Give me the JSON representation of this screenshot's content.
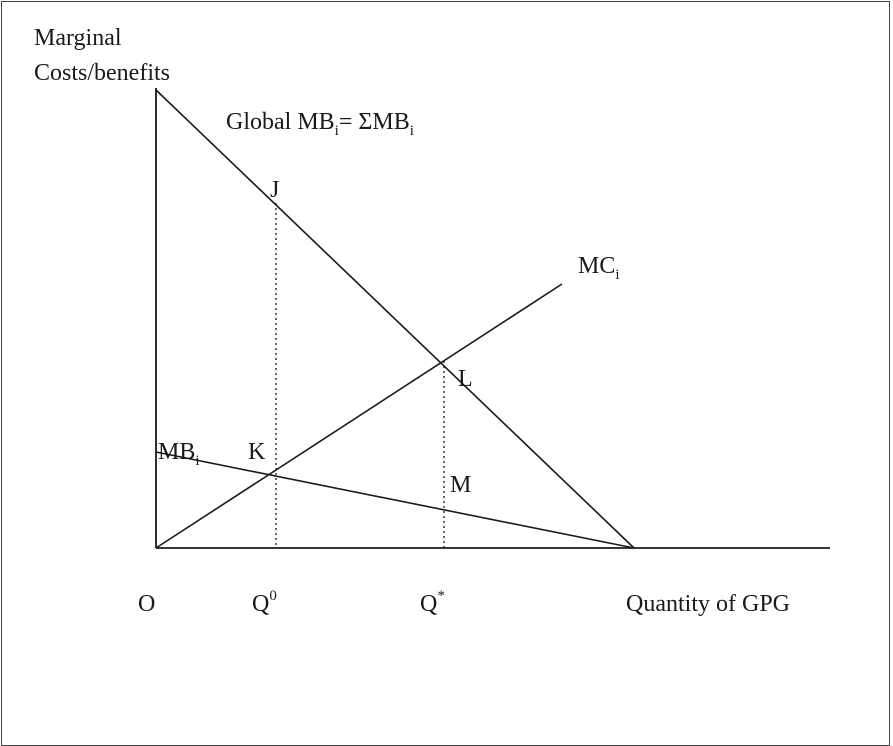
{
  "y_axis_label_line1": "Marginal",
  "y_axis_label_line2": "Costs/benefits",
  "global_mb": {
    "prefix": "Global MB",
    "sub1": "i",
    "eq": "= ΣMB",
    "sub2": "i"
  },
  "mc_label": {
    "main": "MC",
    "sub": "i"
  },
  "mb_label": {
    "main": "MB",
    "sub": "i"
  },
  "points": {
    "J": "J",
    "K": "K",
    "L": "L",
    "M": "M"
  },
  "x_axis": {
    "origin": "O",
    "q0": {
      "main": "Q",
      "sup": "0"
    },
    "qstar": {
      "main": "Q",
      "sup": "*"
    },
    "label": "Quantity of GPG"
  },
  "colors": {
    "ink": "#1a1a1a",
    "frame": "#444444",
    "background": "#ffffff"
  }
}
